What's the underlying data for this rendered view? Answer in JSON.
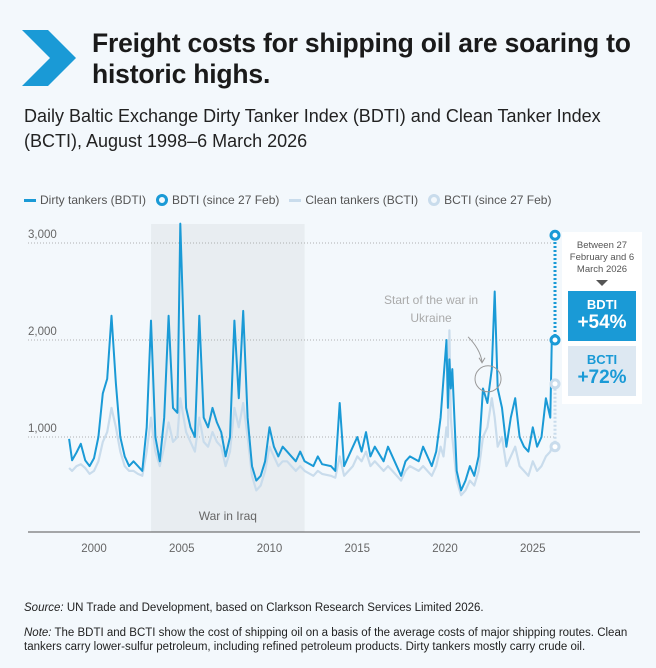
{
  "header": {
    "title": "Freight costs for shipping oil are soaring to historic highs.",
    "subtitle": "Daily Baltic Exchange Dirty Tanker Index (BDTI) and Clean Tanker Index (BCTI), August 1998–6 March 2026",
    "icon": "chevron-right-icon",
    "accent": "#1a9ad6"
  },
  "callout": {
    "between": "Between 27 February and 6 March 2026",
    "bdti_label": "BDTI",
    "bdti_change": "+54%",
    "bcti_label": "BCTI",
    "bcti_change": "+72%"
  },
  "footer": {
    "source_label": "Source:",
    "source_text": " UN Trade and Development, based on Clarkson Research Services Limited 2026.",
    "note_label": "Note:",
    "note_text": " The BDTI and BCTI show the cost of shipping oil on a basis of the average costs of major shipping routes. Clean tankers carry lower-sulfur petroleum, including refined petroleum products. Dirty tankers mostly carry crude oil."
  },
  "chart_data": {
    "type": "line",
    "title": "",
    "xlabel": "",
    "ylabel": "",
    "xlim": [
      "1997-08",
      "2027-06"
    ],
    "ylim": [
      0,
      3200
    ],
    "yticks": [
      1000,
      2000,
      3000
    ],
    "ytick_labels": [
      "1,000",
      "2,000",
      "3,000"
    ],
    "xticks": [
      2000,
      2005,
      2010,
      2015,
      2020,
      2025
    ],
    "xtick_labels": [
      "2000",
      "2005",
      "2010",
      "2015",
      "2020",
      "2025"
    ],
    "grid": "horizontal dotted",
    "legend_position": "top-left",
    "legend": [
      "Dirty tankers (BDTI)",
      "BDTI (since 27 Feb)",
      "Clean tankers (BCTI)",
      "BCTI (since 27 Feb)"
    ],
    "colors": {
      "bdti": "#1a9ad6",
      "bcti": "#c9dcec",
      "shade": "#e8edf1"
    },
    "shaded_region": {
      "label": "War in Iraq",
      "from": "2003-04",
      "to": "2012-01"
    },
    "annotation": {
      "text": "Start of the war in Ukraine",
      "date": "2022-03"
    },
    "dates": [
      "1998-08",
      "1998-10",
      "1999-01",
      "1999-04",
      "1999-07",
      "1999-10",
      "2000-01",
      "2000-04",
      "2000-07",
      "2000-10",
      "2001-01",
      "2001-04",
      "2001-07",
      "2001-10",
      "2002-01",
      "2002-04",
      "2002-07",
      "2002-10",
      "2003-01",
      "2003-04",
      "2003-07",
      "2003-10",
      "2004-01",
      "2004-04",
      "2004-07",
      "2004-10",
      "2004-12",
      "2005-04",
      "2005-07",
      "2005-10",
      "2006-01",
      "2006-04",
      "2006-07",
      "2006-10",
      "2007-01",
      "2007-04",
      "2007-07",
      "2007-10",
      "2008-01",
      "2008-04",
      "2008-07",
      "2008-10",
      "2009-01",
      "2009-04",
      "2009-07",
      "2009-10",
      "2010-01",
      "2010-04",
      "2010-07",
      "2010-10",
      "2011-01",
      "2011-04",
      "2011-07",
      "2011-10",
      "2012-01",
      "2012-07",
      "2012-10",
      "2013-01",
      "2013-07",
      "2013-10",
      "2014-01",
      "2014-04",
      "2014-10",
      "2015-01",
      "2015-04",
      "2015-07",
      "2015-10",
      "2016-01",
      "2016-07",
      "2016-10",
      "2017-01",
      "2017-07",
      "2017-10",
      "2018-01",
      "2018-07",
      "2018-10",
      "2019-04",
      "2019-07",
      "2019-10",
      "2019-12",
      "2020-02",
      "2020-03",
      "2020-04",
      "2020-05",
      "2020-06",
      "2020-09",
      "2020-12",
      "2021-03",
      "2021-06",
      "2021-09",
      "2021-12",
      "2022-03",
      "2022-06",
      "2022-09",
      "2022-11",
      "2023-01",
      "2023-04",
      "2023-07",
      "2023-10",
      "2024-01",
      "2024-04",
      "2024-07",
      "2024-10",
      "2025-01",
      "2025-04",
      "2025-07",
      "2025-10",
      "2026-01",
      "2026-02"
    ],
    "series": [
      {
        "name": "Dirty tankers (BDTI)",
        "values": [
          980,
          760,
          840,
          930,
          760,
          700,
          780,
          1000,
          1450,
          1600,
          2250,
          1550,
          1000,
          800,
          700,
          750,
          700,
          650,
          1100,
          2200,
          1000,
          750,
          1200,
          2250,
          1300,
          1250,
          3200,
          1300,
          1100,
          1000,
          2250,
          1200,
          1100,
          1300,
          1150,
          1050,
          800,
          1000,
          2200,
          1400,
          2300,
          1200,
          700,
          550,
          600,
          750,
          1100,
          900,
          800,
          900,
          850,
          800,
          750,
          850,
          750,
          700,
          800,
          720,
          700,
          650,
          1350,
          700,
          900,
          1000,
          850,
          1050,
          800,
          900,
          750,
          900,
          800,
          600,
          750,
          800,
          750,
          900,
          700,
          850,
          1200,
          1600,
          2000,
          1300,
          1800,
          1500,
          1700,
          650,
          450,
          550,
          700,
          600,
          800,
          1500,
          1350,
          1700,
          2500,
          1500,
          1300,
          900,
          1200,
          1400,
          1000,
          900,
          850,
          1100,
          900,
          1000,
          1400,
          1200,
          2000
        ]
      },
      {
        "name": "Clean tankers (BCTI)",
        "values": [
          680,
          650,
          700,
          720,
          680,
          620,
          650,
          750,
          950,
          1050,
          1300,
          1100,
          850,
          700,
          650,
          650,
          620,
          600,
          850,
          1200,
          850,
          700,
          900,
          1150,
          950,
          1000,
          1400,
          1050,
          950,
          850,
          1200,
          950,
          900,
          1050,
          950,
          900,
          700,
          850,
          1300,
          1100,
          1350,
          1000,
          600,
          450,
          500,
          650,
          900,
          800,
          700,
          750,
          750,
          700,
          650,
          700,
          650,
          600,
          650,
          620,
          600,
          580,
          800,
          600,
          700,
          800,
          750,
          850,
          700,
          750,
          650,
          700,
          650,
          550,
          650,
          700,
          650,
          700,
          600,
          700,
          900,
          800,
          1100,
          1000,
          2100,
          1200,
          1000,
          550,
          400,
          450,
          550,
          500,
          650,
          1000,
          1100,
          1400,
          1200,
          900,
          1000,
          700,
          800,
          900,
          700,
          650,
          600,
          750,
          650,
          700,
          800,
          850,
          900
        ]
      }
    ],
    "since_27_feb": {
      "dates": [
        "2026-02-27",
        "2026-03-06"
      ],
      "bdti": [
        2000,
        3080
      ],
      "bcti": [
        900,
        1548
      ]
    }
  }
}
